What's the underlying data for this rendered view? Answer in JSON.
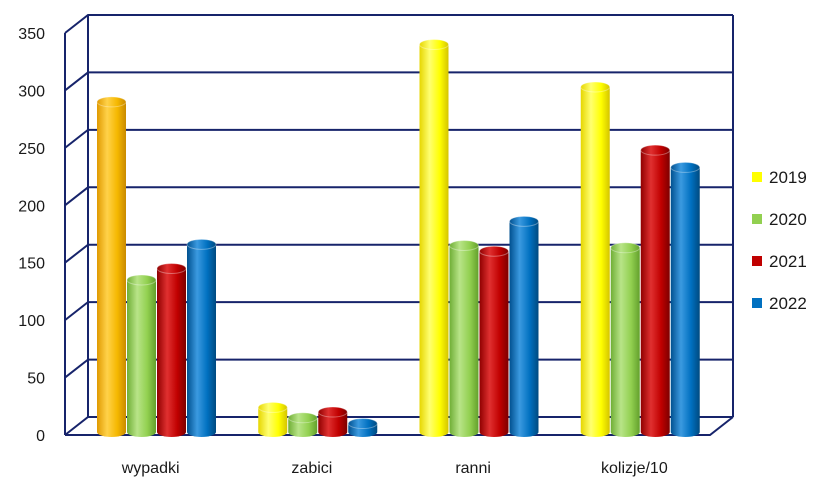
{
  "chart_data": {
    "type": "bar",
    "categories": [
      "wypadki",
      "zabici",
      "ranni",
      "kolizje/10"
    ],
    "series": [
      {
        "name": "2019",
        "values": [
          290,
          24,
          340,
          303
        ]
      },
      {
        "name": "2020",
        "values": [
          135,
          15,
          165,
          163
        ]
      },
      {
        "name": "2021",
        "values": [
          145,
          20,
          160,
          248
        ]
      },
      {
        "name": "2022",
        "values": [
          166,
          10,
          186,
          233
        ]
      }
    ],
    "bar_color_overrides": [
      {
        "series": 0,
        "category": 0,
        "color": "#f5b800"
      }
    ],
    "colors": [
      "#ffff00",
      "#92d050",
      "#c00000",
      "#0070c0"
    ],
    "yticks": [
      0,
      50,
      100,
      150,
      200,
      250,
      300,
      350
    ],
    "ylim": [
      0,
      350
    ],
    "grid": true,
    "legend_position": "right",
    "title": "",
    "xlabel": "",
    "ylabel": ""
  }
}
